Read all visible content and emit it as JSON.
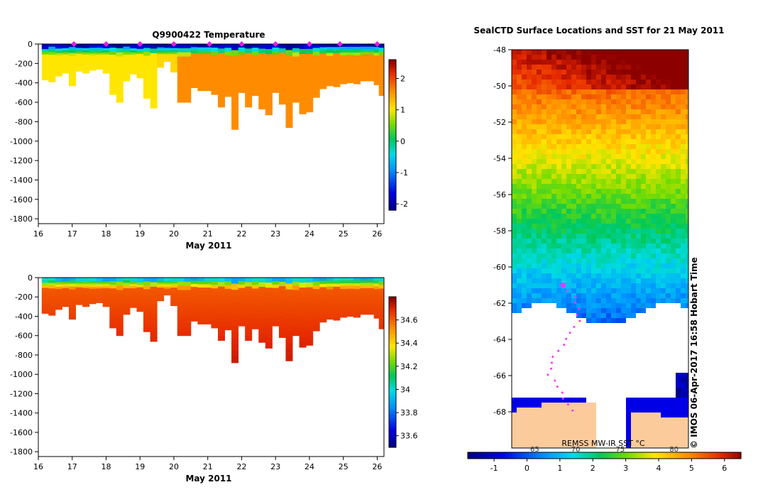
{
  "chart_data": [
    {
      "type": "heatmap",
      "id": "temperature",
      "title": "Q9900422  Temperature",
      "xlabel": "May 2011",
      "ylabel": "",
      "xlim": [
        16,
        26.2
      ],
      "ylim": [
        -1850,
        0
      ],
      "x_ticks": [
        "16",
        "17",
        "18",
        "19",
        "20",
        "21",
        "22",
        "23",
        "24",
        "25",
        "26"
      ],
      "y_ticks": [
        "0",
        "-200",
        "-400",
        "-600",
        "-800",
        "-1000",
        "-1200",
        "-1400",
        "-1600",
        "-1800"
      ],
      "colorbar": {
        "range": [
          -2.2,
          2.6
        ],
        "ticks": [
          "-2",
          "-1",
          "0",
          "1",
          "2"
        ]
      },
      "surface_markers_days": [
        17.05,
        18.0,
        19.0,
        20.0,
        21.05,
        22.0,
        23.0,
        24.0,
        24.9,
        26.0
      ]
    },
    {
      "type": "heatmap",
      "id": "salinity",
      "title": "",
      "xlabel": "May 2011",
      "ylabel": "",
      "xlim": [
        16,
        26.2
      ],
      "ylim": [
        -1850,
        0
      ],
      "x_ticks": [
        "16",
        "17",
        "18",
        "19",
        "20",
        "21",
        "22",
        "23",
        "24",
        "25",
        "26"
      ],
      "y_ticks": [
        "0",
        "-200",
        "-400",
        "-600",
        "-800",
        "-1000",
        "-1200",
        "-1400",
        "-1600",
        "-1800"
      ],
      "colorbar": {
        "range": [
          33.5,
          34.8
        ],
        "ticks": [
          "33.6",
          "33.8",
          "34",
          "34.2",
          "34.4",
          "34.6"
        ]
      }
    },
    {
      "type": "heatmap",
      "id": "sst_map",
      "title": "SealCTD Surface Locations and SST for 21 May 2011",
      "ylim": [
        -70,
        -48
      ],
      "y_ticks": [
        "-48",
        "-50",
        "-52",
        "-54",
        "-56",
        "-58",
        "-60",
        "-62",
        "-64",
        "-66",
        "-68"
      ],
      "colorbar": {
        "range": [
          -1.8,
          6.5
        ],
        "ticks": [
          "-1",
          "0",
          "1",
          "2",
          "3",
          "4",
          "5",
          "6"
        ],
        "secondary_ticks": [
          "65",
          "70",
          "75",
          "80"
        ],
        "caption": "REMSS MW-IR SST °C"
      },
      "side_label": "© IMOS 06-Apr-2017 16:58 Hobart Time"
    }
  ],
  "profiles": {
    "days": [
      16.2,
      16.4,
      16.6,
      16.8,
      17.0,
      17.2,
      17.4,
      17.6,
      17.8,
      18.0,
      18.2,
      18.4,
      18.6,
      18.8,
      19.0,
      19.2,
      19.4,
      19.6,
      19.8,
      20.0,
      20.2,
      20.4,
      20.6,
      20.8,
      21.0,
      21.2,
      21.4,
      21.6,
      21.8,
      22.0,
      22.2,
      22.4,
      22.6,
      22.8,
      23.0,
      23.2,
      23.4,
      23.6,
      23.8,
      24.0,
      24.2,
      24.4,
      24.6,
      24.8,
      25.0,
      25.2,
      25.4,
      25.6,
      25.8,
      26.0,
      26.15
    ],
    "depths": [
      370,
      390,
      330,
      300,
      430,
      280,
      300,
      270,
      260,
      300,
      520,
      600,
      380,
      310,
      350,
      560,
      660,
      240,
      180,
      290,
      600,
      600,
      450,
      480,
      480,
      520,
      650,
      540,
      880,
      500,
      650,
      530,
      670,
      730,
      500,
      620,
      860,
      600,
      720,
      700,
      550,
      460,
      430,
      440,
      410,
      400,
      410,
      380,
      380,
      420,
      530
    ]
  }
}
